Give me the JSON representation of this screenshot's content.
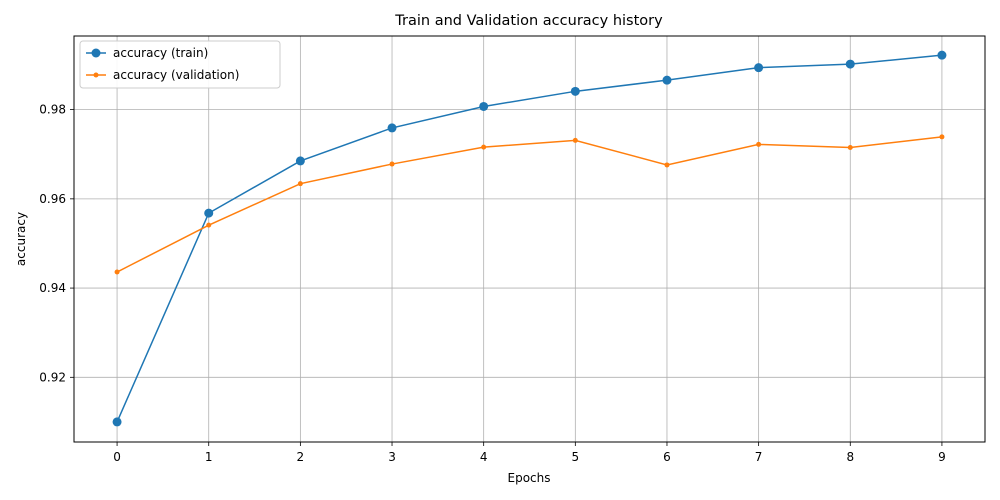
{
  "chart_data": {
    "type": "line",
    "title": "Train and Validation accuracy history",
    "xlabel": "Epochs",
    "ylabel": "accuracy",
    "x": [
      0,
      1,
      2,
      3,
      4,
      5,
      6,
      7,
      8,
      9
    ],
    "xticks": [
      "0",
      "1",
      "2",
      "3",
      "4",
      "5",
      "6",
      "7",
      "8",
      "9"
    ],
    "yticks": [
      "0.92",
      "0.94",
      "0.96",
      "0.98"
    ],
    "ytick_values": [
      0.92,
      0.94,
      0.96,
      0.98
    ],
    "xlim": [
      -0.47,
      9.47
    ],
    "ylim": [
      0.9055,
      0.9965
    ],
    "grid": true,
    "legend_position": "top-left",
    "series": [
      {
        "name": "accuracy (train)",
        "color": "#1f77b4",
        "marker": "circle-large",
        "values": [
          0.91,
          0.9568,
          0.9685,
          0.9759,
          0.9807,
          0.9841,
          0.9866,
          0.9894,
          0.9902,
          0.9922
        ]
      },
      {
        "name": "accuracy (validation)",
        "color": "#ff7f0e",
        "marker": "circle-small",
        "values": [
          0.9436,
          0.9541,
          0.9634,
          0.9678,
          0.9716,
          0.9731,
          0.9676,
          0.9722,
          0.9715,
          0.9739
        ]
      }
    ]
  }
}
